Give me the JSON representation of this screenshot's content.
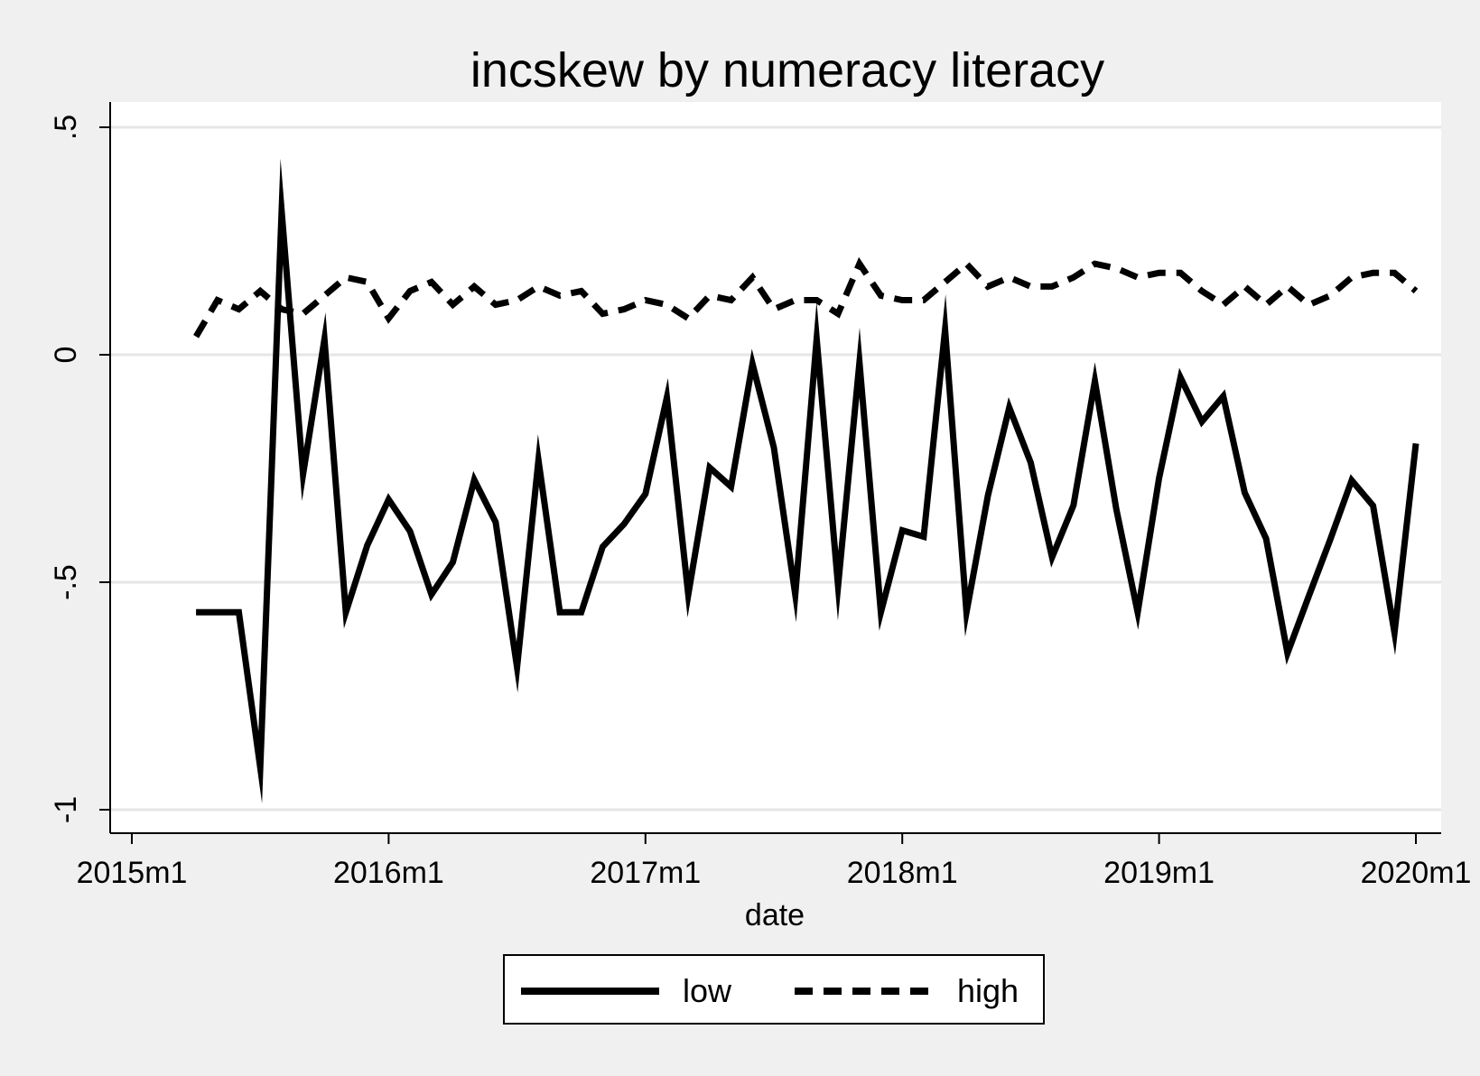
{
  "chart_data": {
    "type": "line",
    "title": "incskew by numeracy literacy",
    "xlabel": "date",
    "ylabel": "",
    "x_ticks": [
      {
        "label": "2015m1",
        "month": 0
      },
      {
        "label": "2016m1",
        "month": 12
      },
      {
        "label": "2017m1",
        "month": 24
      },
      {
        "label": "2018m1",
        "month": 36
      },
      {
        "label": "2019m1",
        "month": 48
      },
      {
        "label": "2020m1",
        "month": 60
      }
    ],
    "y_ticks": [
      {
        "label": ".5",
        "value": 0.5
      },
      {
        "label": "0",
        "value": 0
      },
      {
        "label": "-.5",
        "value": -0.5
      },
      {
        "label": "-1",
        "value": -1
      }
    ],
    "xlim": [
      "2015m1",
      "2020m1"
    ],
    "ylim": [
      -1.05,
      0.56
    ],
    "grid": true,
    "legend": "bottom",
    "x": [
      "2015m4",
      "2015m5",
      "2015m6",
      "2015m7",
      "2015m8",
      "2015m9",
      "2015m10",
      "2015m11",
      "2015m12",
      "2016m1",
      "2016m2",
      "2016m3",
      "2016m4",
      "2016m5",
      "2016m6",
      "2016m7",
      "2016m8",
      "2016m9",
      "2016m10",
      "2016m11",
      "2016m12",
      "2017m1",
      "2017m2",
      "2017m3",
      "2017m4",
      "2017m5",
      "2017m6",
      "2017m7",
      "2017m8",
      "2017m9",
      "2017m10",
      "2017m11",
      "2017m12",
      "2018m1",
      "2018m2",
      "2018m3",
      "2018m4",
      "2018m5",
      "2018m6",
      "2018m7",
      "2018m8",
      "2018m9",
      "2018m10",
      "2018m11",
      "2018m12",
      "2019m1",
      "2019m2",
      "2019m3",
      "2019m4",
      "2019m5",
      "2019m6",
      "2019m7",
      "2019m8",
      "2019m9",
      "2019m10",
      "2019m11",
      "2019m12",
      "2020m1"
    ],
    "series": [
      {
        "name": "low",
        "dash": "solid",
        "color": "#000000",
        "values": [
          -0.566,
          -0.566,
          -0.566,
          -0.907,
          0.315,
          -0.263,
          0.034,
          -0.566,
          -0.419,
          -0.318,
          -0.388,
          -0.527,
          -0.456,
          -0.275,
          -0.368,
          -0.687,
          -0.232,
          -0.566,
          -0.566,
          -0.422,
          -0.372,
          -0.306,
          -0.094,
          -0.527,
          -0.248,
          -0.29,
          -0.02,
          -0.204,
          -0.527,
          0.035,
          -0.508,
          -0.017,
          -0.566,
          -0.386,
          -0.4,
          0.055,
          -0.566,
          -0.31,
          -0.116,
          -0.237,
          -0.445,
          -0.331,
          -0.058,
          -0.339,
          -0.566,
          -0.271,
          -0.05,
          -0.147,
          -0.091,
          -0.303,
          -0.404,
          -0.656,
          -0.53,
          -0.406,
          -0.276,
          -0.332,
          -0.611,
          -0.195
        ]
      },
      {
        "name": "high",
        "dash": "dashed",
        "color": "#000000",
        "values": [
          0.04,
          0.12,
          0.1,
          0.14,
          0.1,
          0.09,
          0.13,
          0.17,
          0.16,
          0.08,
          0.14,
          0.16,
          0.11,
          0.15,
          0.11,
          0.12,
          0.15,
          0.13,
          0.14,
          0.09,
          0.1,
          0.12,
          0.11,
          0.08,
          0.13,
          0.12,
          0.17,
          0.1,
          0.12,
          0.12,
          0.09,
          0.2,
          0.13,
          0.12,
          0.12,
          0.16,
          0.2,
          0.15,
          0.17,
          0.15,
          0.15,
          0.17,
          0.2,
          0.19,
          0.17,
          0.18,
          0.18,
          0.14,
          0.11,
          0.15,
          0.11,
          0.15,
          0.11,
          0.13,
          0.17,
          0.18,
          0.18,
          0.14
        ]
      }
    ]
  }
}
